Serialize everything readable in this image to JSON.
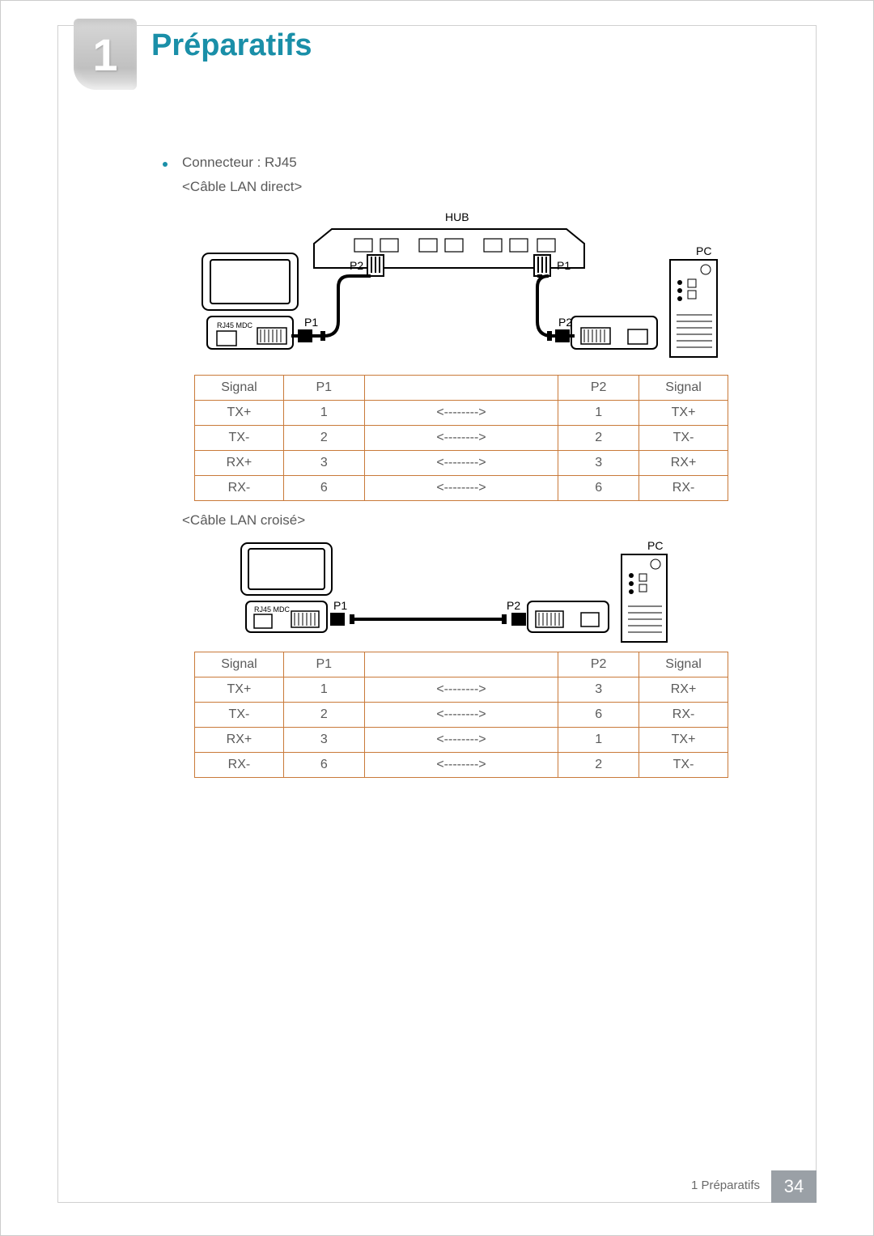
{
  "colors": {
    "accent": "#1a8fa8",
    "text": "#5a5a5a",
    "table_border": "#c97a3a",
    "footer_bg": "#9aa0a6",
    "bullet": "#1a8fa8"
  },
  "chapter": {
    "number": "1",
    "title": "Préparatifs"
  },
  "bullet": "Connecteur : RJ45",
  "direct_label": "<Câble LAN direct>",
  "cross_label": "<Câble LAN croisé>",
  "diagram1": {
    "hub": "HUB",
    "pc": "PC",
    "p1": "P1",
    "p2": "P2",
    "rj45": "RJ45 MDC"
  },
  "diagram2": {
    "pc": "PC",
    "p1": "P1",
    "p2": "P2",
    "rj45": "RJ45 MDC"
  },
  "table_direct": {
    "headers": [
      "Signal",
      "P1",
      "",
      "P2",
      "Signal"
    ],
    "rows": [
      [
        "TX+",
        "1",
        "<-------->",
        "1",
        "TX+"
      ],
      [
        "TX-",
        "2",
        "<-------->",
        "2",
        "TX-"
      ],
      [
        "RX+",
        "3",
        "<-------->",
        "3",
        "RX+"
      ],
      [
        "RX-",
        "6",
        "<-------->",
        "6",
        "RX-"
      ]
    ]
  },
  "table_cross": {
    "headers": [
      "Signal",
      "P1",
      "",
      "P2",
      "Signal"
    ],
    "rows": [
      [
        "TX+",
        "1",
        "<-------->",
        "3",
        "RX+"
      ],
      [
        "TX-",
        "2",
        "<-------->",
        "6",
        "RX-"
      ],
      [
        "RX+",
        "3",
        "<-------->",
        "1",
        "TX+"
      ],
      [
        "RX-",
        "6",
        "<-------->",
        "2",
        "TX-"
      ]
    ]
  },
  "footer": {
    "label": "1 Préparatifs",
    "page": "34"
  }
}
